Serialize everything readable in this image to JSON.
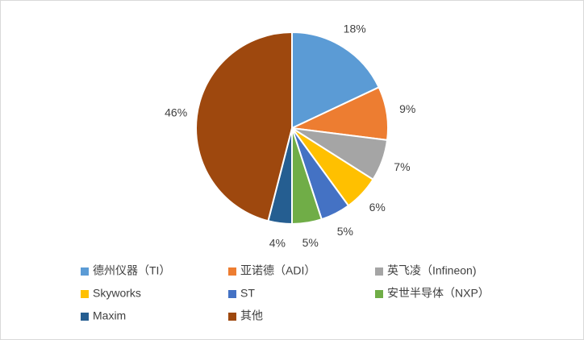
{
  "chart_data": {
    "type": "pie",
    "categories": [
      "德州仪器（TI）",
      "亚诺德（ADI）",
      "英飞凌（Infineon)",
      "Skyworks",
      "ST",
      "安世半导体（NXP）",
      "Maxim",
      "其他"
    ],
    "values": [
      18,
      9,
      7,
      6,
      5,
      5,
      4,
      46
    ],
    "value_labels": [
      "18%",
      "9%",
      "7%",
      "6%",
      "5%",
      "5%",
      "4%",
      "46%"
    ],
    "colors": [
      "#5b9bd5",
      "#ed7d31",
      "#a5a5a5",
      "#ffc000",
      "#4472c4",
      "#70ad47",
      "#255e91",
      "#9e480e"
    ],
    "legend": "bottom"
  }
}
